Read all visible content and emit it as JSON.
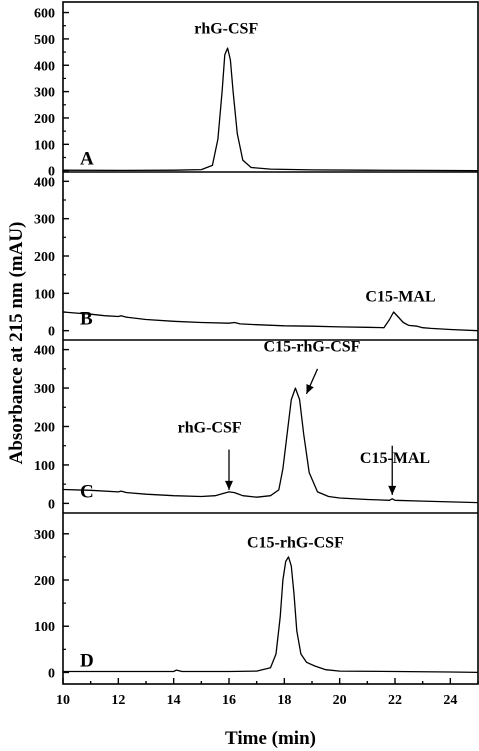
{
  "chart_data": {
    "type": "line",
    "xlabel": "Time (min)",
    "ylabel": "Absorbance at 215 nm (mAU)",
    "xlim": [
      10,
      25
    ],
    "x_ticks": [
      10,
      12,
      14,
      16,
      18,
      20,
      22,
      24
    ],
    "x_minor_step": 1,
    "grid": false,
    "panels": [
      {
        "label": "A",
        "ylim": [
          -5,
          640
        ],
        "y_ticks": [
          0,
          100,
          200,
          300,
          400,
          500,
          600
        ],
        "series": [
          {
            "x": [
              10,
              12,
              14,
              15,
              15.4,
              15.6,
              15.75,
              15.85,
              15.95,
              16.05,
              16.15,
              16.3,
              16.5,
              16.8,
              17.5,
              19,
              21,
              23,
              25
            ],
            "y": [
              2,
              1,
              2,
              4,
              20,
              120,
              300,
              440,
              465,
              420,
              300,
              140,
              40,
              12,
              6,
              3,
              2,
              1,
              0
            ]
          }
        ],
        "annotations": [
          {
            "text": "rhG-CSF",
            "x": 15.9,
            "y": 520
          }
        ]
      },
      {
        "label": "B",
        "ylim": [
          -25,
          425
        ],
        "y_ticks": [
          0,
          100,
          200,
          300,
          400
        ],
        "series": [
          {
            "x": [
              10,
              10.5,
              11,
              11.5,
              12,
              12.1,
              12.3,
              13,
              14,
              15,
              16,
              16.2,
              16.4,
              17,
              18,
              19,
              20,
              21,
              21.6,
              21.8,
              21.95,
              22.1,
              22.3,
              22.5,
              22.8,
              23.0,
              23.3,
              24,
              25
            ],
            "y": [
              50,
              47,
              44,
              40,
              38,
              40,
              36,
              30,
              25,
              22,
              20,
              22,
              18,
              16,
              13,
              12,
              10,
              9,
              8,
              30,
              50,
              38,
              22,
              14,
              12,
              8,
              6,
              3,
              0
            ]
          }
        ],
        "annotations": [
          {
            "text": "C15-MAL",
            "x": 22.2,
            "y": 78
          }
        ]
      },
      {
        "label": "C",
        "ylim": [
          -25,
          425
        ],
        "y_ticks": [
          0,
          100,
          200,
          300,
          400
        ],
        "series": [
          {
            "x": [
              10,
              11,
              12,
              12.1,
              12.3,
              13,
              14,
              15,
              15.5,
              15.8,
              16.0,
              16.2,
              16.5,
              17,
              17.5,
              17.8,
              17.95,
              18.1,
              18.25,
              18.4,
              18.55,
              18.7,
              18.9,
              19.2,
              19.6,
              20,
              21,
              21.8,
              21.9,
              22.0,
              23,
              24,
              25
            ],
            "y": [
              36,
              34,
              30,
              32,
              28,
              24,
              20,
              18,
              20,
              26,
              30,
              28,
              20,
              16,
              20,
              35,
              90,
              180,
              270,
              300,
              270,
              180,
              80,
              30,
              18,
              14,
              10,
              8,
              12,
              8,
              6,
              4,
              2
            ]
          }
        ],
        "annotations": [
          {
            "text": "rhG-CSF",
            "x": 15.3,
            "y": 185
          },
          {
            "text": "C15-rhG-CSF",
            "x": 19.0,
            "y": 395
          },
          {
            "text": "C15-MAL",
            "x": 22.0,
            "y": 105
          }
        ],
        "arrows": [
          {
            "from": [
              16.0,
              140
            ],
            "to": [
              16.0,
              35
            ]
          },
          {
            "from": [
              19.2,
              350
            ],
            "to": [
              18.8,
              285
            ]
          },
          {
            "from": [
              21.9,
              150
            ],
            "to": [
              21.9,
              22
            ]
          }
        ]
      },
      {
        "label": "D",
        "ylim": [
          -25,
          345
        ],
        "y_ticks": [
          0,
          100,
          200,
          300
        ],
        "series": [
          {
            "x": [
              10,
              12,
              13,
              14,
              14.1,
              14.3,
              15,
              16,
              17,
              17.5,
              17.7,
              17.85,
              17.95,
              18.05,
              18.15,
              18.25,
              18.35,
              18.45,
              18.6,
              18.8,
              19.1,
              19.5,
              20,
              22,
              24,
              25
            ],
            "y": [
              2,
              2,
              2,
              2,
              5,
              2,
              2,
              2,
              3,
              10,
              40,
              120,
              200,
              240,
              250,
              230,
              170,
              90,
              40,
              22,
              14,
              6,
              3,
              2,
              1,
              0
            ]
          }
        ],
        "annotations": [
          {
            "text": "C15-rhG-CSF",
            "x": 18.4,
            "y": 270
          }
        ]
      }
    ]
  }
}
